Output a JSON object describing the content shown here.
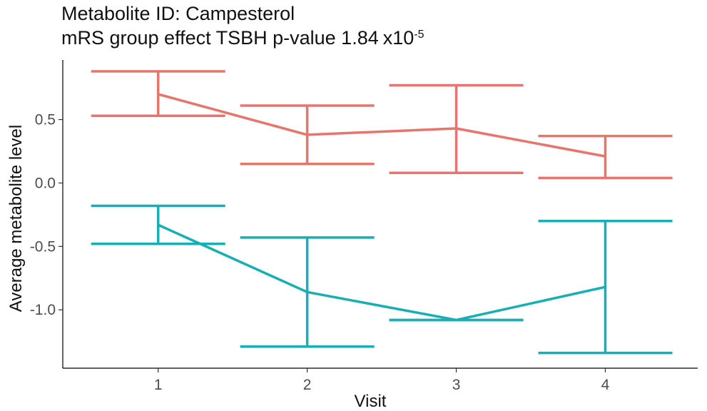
{
  "chart_data": {
    "type": "line",
    "title": "Metabolite ID: Campesterol",
    "subtitle_text": "mRS group effect TSBH p-value 1.84",
    "subtitle_multiplier": "x10",
    "subtitle_exponent": "-5",
    "xlabel": "Visit",
    "ylabel": "Average metabolite level",
    "categories": [
      "1",
      "2",
      "3",
      "4"
    ],
    "x_tick_labels": [
      "1",
      "2",
      "3",
      "4"
    ],
    "y_ticks": [
      0.5,
      0.0,
      -0.5,
      -1.0
    ],
    "y_tick_labels": [
      "0.5",
      "0.0",
      "-0.5",
      "-1.0"
    ],
    "xlim": [
      0.36,
      4.62
    ],
    "ylim": [
      -1.46,
      0.97
    ],
    "grid": false,
    "legend": "none",
    "error_bars": true,
    "series": [
      {
        "color": "#E8756B",
        "values": [
          0.7,
          0.38,
          0.43,
          0.21
        ],
        "lower": [
          0.53,
          0.15,
          0.08,
          0.04
        ],
        "upper": [
          0.88,
          0.61,
          0.77,
          0.37
        ]
      },
      {
        "color": "#17AFB3",
        "values": [
          -0.33,
          -0.86,
          -1.08,
          -0.82
        ],
        "lower": [
          -0.48,
          -1.29,
          -1.08,
          -1.34
        ],
        "upper": [
          -0.18,
          -0.43,
          -1.08,
          -0.3
        ]
      }
    ]
  }
}
